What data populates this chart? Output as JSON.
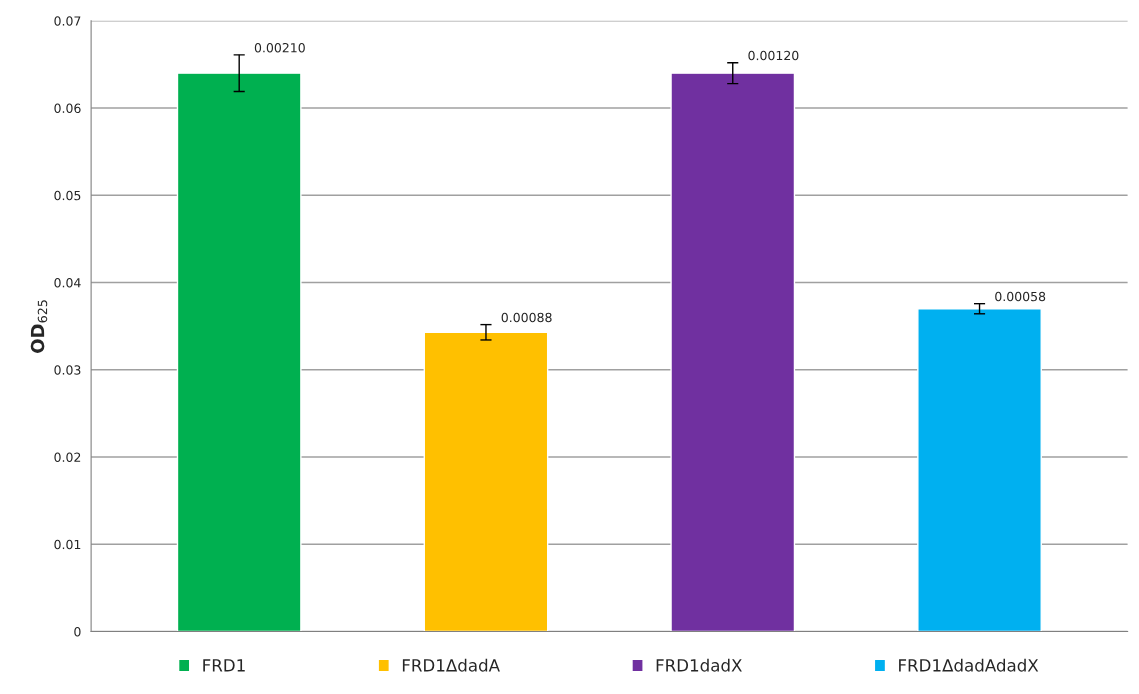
{
  "chart_data": {
    "type": "bar",
    "ylabel": "OD$_{625}$",
    "categories": [
      null,
      null,
      null,
      null
    ],
    "series": [
      {
        "name": "FRD1",
        "color": "#00b050",
        "values": [
          0.064,
          null,
          null,
          null
        ],
        "errors": [
          0.0021,
          null,
          null,
          null
        ]
      },
      {
        "name": "FRD1ΔdadA",
        "color": "#ffc000",
        "values": [
          null,
          0.0343,
          null,
          null
        ],
        "errors": [
          null,
          0.00088,
          null,
          null
        ]
      },
      {
        "name": "FRD1dadX",
        "color": "#7030a0",
        "values": [
          null,
          null,
          0.064,
          null
        ],
        "errors": [
          null,
          null,
          0.0012,
          null
        ]
      },
      {
        "name": "FRD1ΔdadAdadX",
        "color": "#00b0f0",
        "values": [
          null,
          null,
          null,
          0.037
        ],
        "errors": [
          null,
          null,
          null,
          0.00058
        ]
      }
    ],
    "annotations": [
      "0.00210",
      "0.00088",
      "0.00120",
      "0.00058"
    ],
    "ylim": [
      0,
      0.07
    ],
    "yticks": [
      0,
      0.01,
      0.02,
      0.03,
      0.04,
      0.05,
      0.06,
      0.07
    ],
    "grid": "y",
    "legend": "bottom",
    "tick_labels": "y"
  }
}
